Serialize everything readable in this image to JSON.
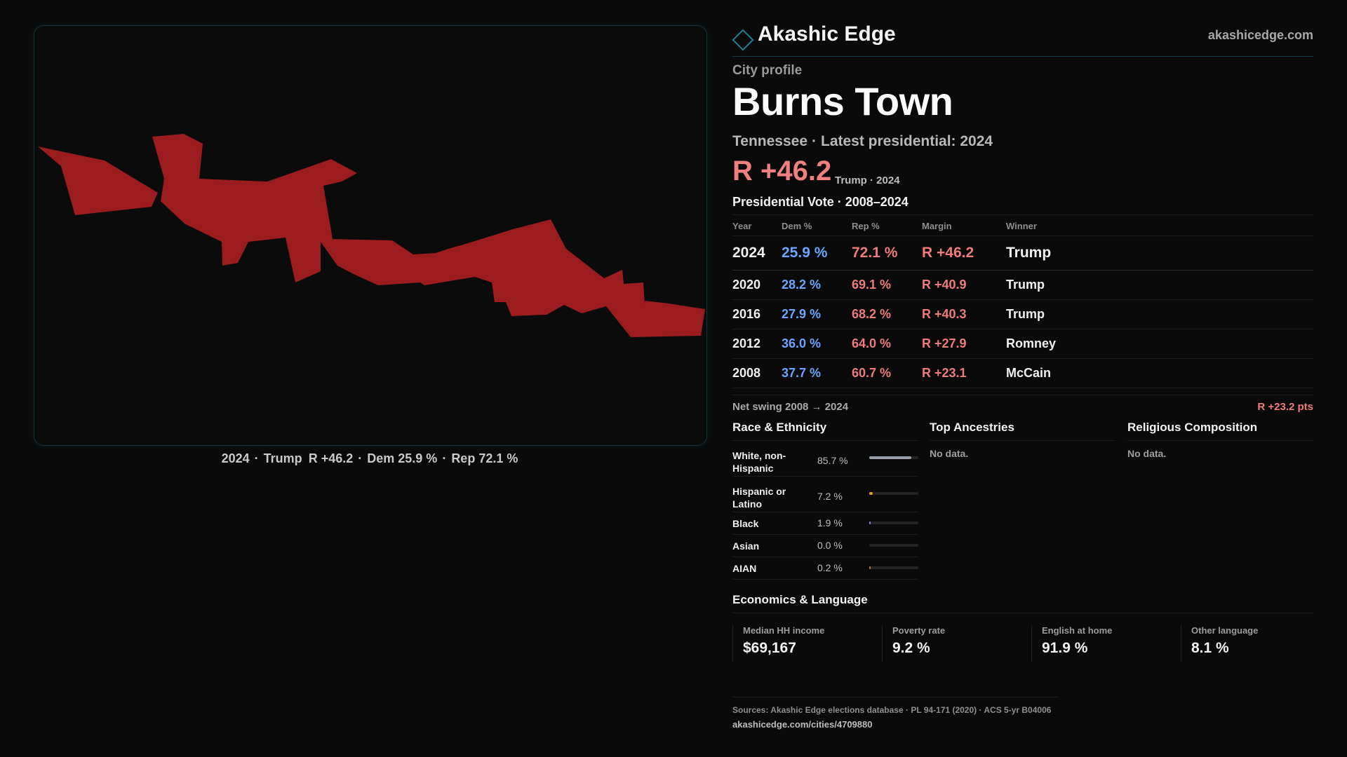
{
  "map": {
    "fill_color": "#9b1c1f",
    "caption": {
      "year": "2024",
      "winner": "Trump",
      "margin": "R +46.2",
      "dem": "Dem 25.9 %",
      "rep": "Rep 72.1 %"
    }
  },
  "header": {
    "brand": "Akashic Edge",
    "url": "akashicedge.com"
  },
  "profile": {
    "kicker": "City profile",
    "city": "Burns Town",
    "state": "Tennessee",
    "latest": "Latest presidential: 2024",
    "margin": "R +46.2",
    "margin_sub": "Trump · 2024"
  },
  "votes": {
    "title": "Presidential Vote · 2008–2024",
    "columns": [
      "Year",
      "Dem %",
      "Rep %",
      "Margin",
      "Winner"
    ],
    "rows": [
      {
        "year": "2024",
        "dem": "25.9 %",
        "rep": "72.1 %",
        "margin": "R +46.2",
        "winner": "Trump"
      },
      {
        "year": "2020",
        "dem": "28.2 %",
        "rep": "69.1 %",
        "margin": "R +40.9",
        "winner": "Trump"
      },
      {
        "year": "2016",
        "dem": "27.9 %",
        "rep": "68.2 %",
        "margin": "R +40.3",
        "winner": "Trump"
      },
      {
        "year": "2012",
        "dem": "36.0 %",
        "rep": "64.0 %",
        "margin": "R +27.9",
        "winner": "Romney"
      },
      {
        "year": "2008",
        "dem": "37.7 %",
        "rep": "60.7 %",
        "margin": "R +23.1",
        "winner": "McCain"
      }
    ],
    "swing_label": "Net swing 2008 → 2024",
    "swing_value": "R +23.2 pts"
  },
  "race": {
    "title": "Race & Ethnicity",
    "rows": [
      {
        "name": "White, non-Hispanic",
        "pct": "85.7 %",
        "value": 0.857,
        "color": "#9aa0aa"
      },
      {
        "name": "Hispanic or Latino",
        "pct": "7.2 %",
        "value": 0.072,
        "color": "#e0a020"
      },
      {
        "name": "Black",
        "pct": "1.9 %",
        "value": 0.019,
        "color": "#8a7cf0"
      },
      {
        "name": "Asian",
        "pct": "0.0 %",
        "value": 0.0,
        "color": "#4fb0c0"
      },
      {
        "name": "AIAN",
        "pct": "0.2 %",
        "value": 0.002,
        "color": "#c07040"
      }
    ]
  },
  "ancestries": {
    "title": "Top Ancestries",
    "empty": "No data."
  },
  "religion": {
    "title": "Religious Composition",
    "empty": "No data."
  },
  "economics": {
    "title": "Economics & Language",
    "stats": [
      {
        "label": "Median HH income",
        "value": "$69,167"
      },
      {
        "label": "Poverty rate",
        "value": "9.2 %"
      },
      {
        "label": "English at home",
        "value": "91.9 %"
      },
      {
        "label": "Other language",
        "value": "8.1 %"
      }
    ]
  },
  "sources": {
    "text": "Sources: Akashic Edge elections database · PL 94-171 (2020) · ACS 5-yr B04006",
    "url": "akashicedge.com/cities/4709880"
  }
}
